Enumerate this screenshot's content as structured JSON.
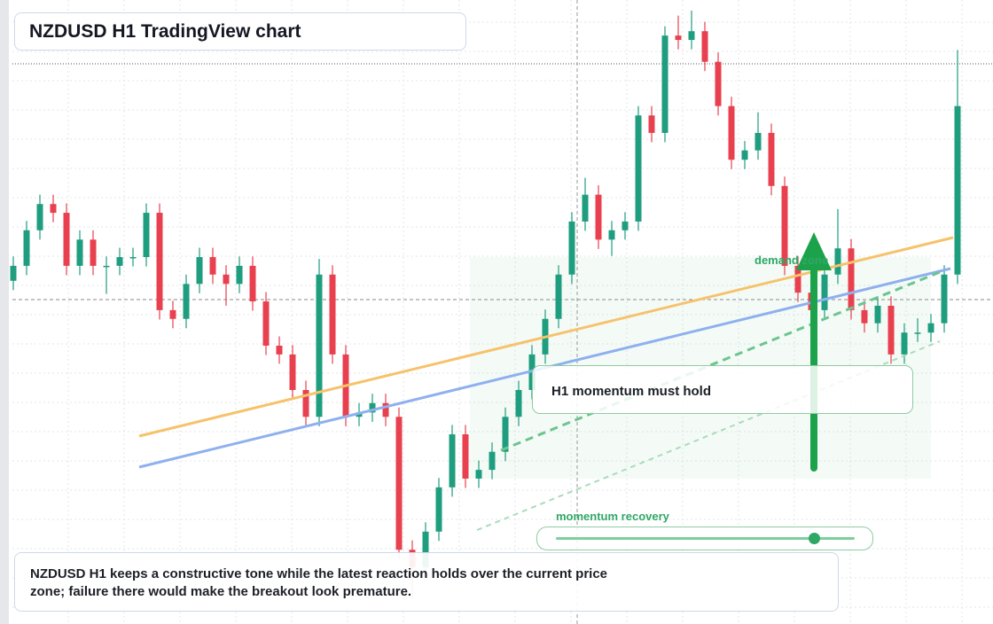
{
  "chart_data": {
    "type": "candlestick",
    "title": "NZDUSD H1 TradingView chart",
    "annotations": {
      "zone": "demand zone",
      "callout": "H1 momentum must hold",
      "slider": "momentum recovery",
      "description": "NZDUSD H1 keeps a constructive tone while the latest reaction holds over the current price zone; failure there would make the breakout look premature."
    },
    "ylim": [
      0,
      100
    ],
    "up_color": "#1f9d7f",
    "down_color": "#e8404f",
    "open": [
      55.0,
      57.4,
      63.1,
      67.3,
      65.9,
      57.4,
      61.6,
      57.4,
      57.4,
      58.8,
      58.8,
      65.9,
      50.3,
      48.9,
      54.5,
      58.8,
      56.0,
      54.5,
      57.4,
      51.7,
      44.6,
      43.2,
      37.5,
      33.2,
      56.0,
      43.2,
      33.2,
      33.9,
      35.4,
      33.2,
      11.9,
      9.1,
      14.8,
      21.9,
      30.4,
      23.3,
      24.7,
      27.6,
      33.2,
      37.5,
      43.2,
      48.9,
      56.0,
      64.5,
      68.8,
      61.6,
      63.1,
      64.5,
      81.5,
      78.7,
      94.3,
      93.6,
      95.0,
      90.1,
      83.0,
      74.4,
      75.9,
      78.7,
      70.2,
      57.4,
      53.1,
      50.3,
      56.0,
      60.2,
      50.3,
      48.2,
      51.0,
      43.2,
      46.7,
      46.7,
      48.2,
      56.0
    ],
    "high": [
      58.9,
      64.6,
      68.8,
      68.8,
      67.4,
      63.1,
      63.1,
      58.9,
      60.3,
      60.3,
      67.4,
      67.4,
      51.8,
      56.0,
      60.3,
      60.3,
      57.5,
      58.9,
      58.9,
      53.2,
      46.1,
      44.7,
      39.0,
      58.5,
      57.5,
      44.7,
      35.4,
      36.9,
      36.9,
      34.7,
      13.4,
      16.3,
      23.4,
      31.9,
      31.9,
      26.2,
      29.1,
      34.7,
      39.0,
      44.7,
      50.4,
      57.5,
      66.0,
      71.5,
      70.3,
      64.6,
      66.0,
      83.0,
      83.0,
      95.8,
      97.5,
      98.3,
      96.5,
      91.6,
      84.5,
      77.4,
      82.0,
      80.2,
      71.7,
      58.9,
      54.6,
      57.5,
      66.5,
      61.7,
      51.8,
      52.5,
      52.5,
      48.2,
      49.0,
      49.7,
      57.5,
      92.0
    ],
    "low": [
      53.5,
      55.9,
      61.6,
      64.4,
      55.9,
      55.9,
      55.9,
      52.9,
      55.9,
      57.3,
      57.3,
      48.8,
      47.4,
      47.4,
      53.0,
      54.5,
      51.0,
      53.0,
      50.2,
      43.1,
      41.7,
      36.0,
      31.7,
      31.7,
      41.7,
      31.7,
      31.7,
      32.4,
      31.7,
      10.4,
      4.0,
      7.6,
      13.3,
      20.4,
      21.8,
      21.8,
      23.2,
      26.1,
      31.7,
      36.0,
      41.7,
      47.4,
      54.5,
      63.0,
      60.1,
      59.0,
      61.6,
      63.0,
      77.2,
      77.2,
      92.1,
      92.1,
      88.6,
      81.5,
      72.9,
      72.9,
      74.4,
      68.7,
      55.9,
      51.6,
      48.8,
      48.8,
      54.5,
      48.8,
      46.7,
      46.7,
      41.7,
      41.7,
      45.2,
      45.2,
      46.7,
      54.5
    ],
    "close": [
      57.4,
      63.1,
      67.3,
      65.9,
      57.4,
      61.6,
      57.4,
      57.4,
      58.8,
      58.8,
      65.9,
      50.3,
      48.9,
      54.5,
      58.8,
      56.0,
      54.5,
      57.4,
      51.7,
      44.6,
      43.2,
      37.5,
      33.2,
      56.0,
      43.2,
      33.2,
      33.9,
      35.4,
      33.2,
      11.9,
      9.1,
      14.8,
      21.9,
      30.4,
      23.3,
      24.7,
      27.6,
      33.2,
      37.5,
      43.2,
      48.9,
      56.0,
      64.5,
      68.8,
      61.6,
      63.1,
      64.5,
      81.5,
      78.7,
      94.3,
      93.6,
      95.0,
      90.1,
      83.0,
      74.4,
      75.9,
      78.7,
      70.2,
      57.4,
      53.1,
      50.3,
      56.0,
      60.2,
      50.3,
      48.2,
      51.0,
      43.2,
      46.7,
      46.7,
      48.2,
      56.0,
      83.0
    ]
  }
}
